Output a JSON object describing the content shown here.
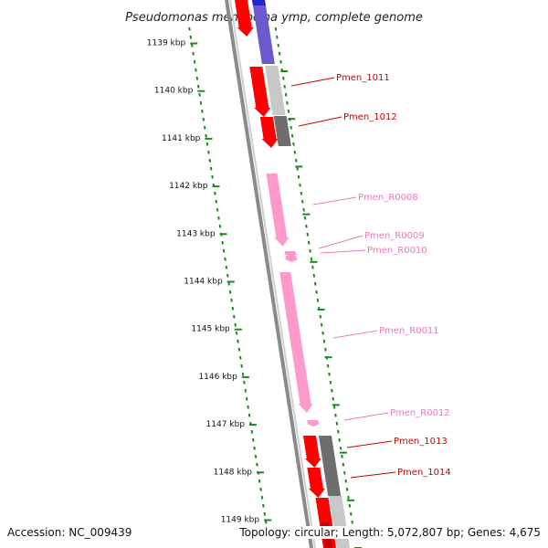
{
  "title": "Pseudomonas mendocina ymp, complete genome",
  "footer": {
    "accession": "Accession: NC_009439",
    "summary": "Topology: circular; Length: 5,072,807 bp; Genes: 4,675"
  },
  "scale_labels": [
    "1139 kbp",
    "1140 kbp",
    "1141 kbp",
    "1142 kbp",
    "1143 kbp",
    "1144 kbp",
    "1145 kbp",
    "1146 kbp",
    "1147 kbp",
    "1148 kbp",
    "1149 kbp"
  ],
  "gene_labels": [
    {
      "text": "Pmen_1011",
      "type": "gene"
    },
    {
      "text": "Pmen_1012",
      "type": "gene"
    },
    {
      "text": "Pmen_R0008",
      "type": "rna"
    },
    {
      "text": "Pmen_R0009",
      "type": "rna"
    },
    {
      "text": "Pmen_R0010",
      "type": "rna"
    },
    {
      "text": "Pmen_R0011",
      "type": "rna"
    },
    {
      "text": "Pmen_R0012",
      "type": "rna"
    },
    {
      "text": "Pmen_1013",
      "type": "gene"
    },
    {
      "text": "Pmen_1014",
      "type": "gene"
    }
  ],
  "colors": {
    "gene_cds": "#ff0000",
    "gene_cds_dark": "#c80000",
    "rna": "#ff99cc",
    "rna_label": "#e879b8",
    "gene_label": "#cc0000",
    "blue": "#6a5acd",
    "grey_light": "#c8c8c8",
    "grey_dark": "#6e6e6e",
    "backbone": "#8a8a8a",
    "ticks": "#1a8a1a"
  }
}
